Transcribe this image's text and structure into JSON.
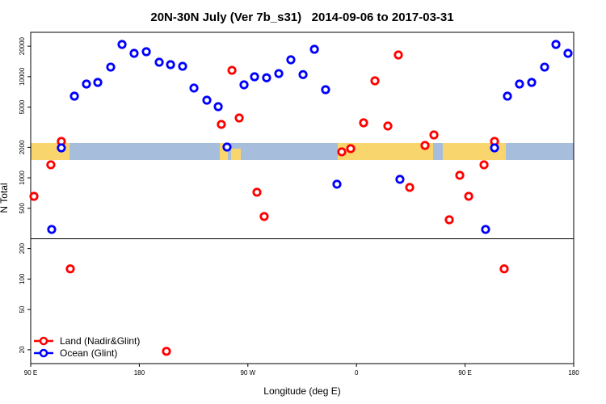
{
  "chart_data": {
    "type": "scatter",
    "log_y": true,
    "title": "20N-30N July (Ver 7b_s31)   2014-09-06 to 2017-03-31",
    "xlabel": "Longitude (deg E)",
    "ylabel": "N Total",
    "xlim": [
      90,
      540
    ],
    "ylim": [
      14.6,
      27400
    ],
    "xticks": [
      {
        "value": 90,
        "label": "90 E"
      },
      180,
      {
        "value": 270,
        "label": "90 W"
      },
      {
        "value": 360,
        "label": "0"
      },
      {
        "value": 450,
        "label": "90 E"
      },
      {
        "value": 540,
        "label": "180"
      }
    ],
    "yticks": [
      20,
      50,
      100,
      200,
      500,
      1000,
      2000,
      5000,
      10000,
      20000
    ],
    "hline": 250,
    "legend": "bottom-left",
    "series": [
      {
        "name": "Land (Nadir&Glint)",
        "color": "#ff0000",
        "x": [
          92.7,
          106.7,
          115.4,
          122.8,
          202.5,
          248,
          256.8,
          262.8,
          277.5,
          283.5,
          347.8,
          355.2,
          365.9,
          375.3,
          386,
          394.7,
          404.1,
          416.8,
          424.2,
          436.9,
          445.6,
          453,
          465.7,
          474.4,
          482.4
        ],
        "values": [
          656,
          1345,
          2291,
          126,
          19.3,
          3373,
          11540,
          3902,
          720,
          415,
          1805,
          1942,
          3497,
          9090,
          3250,
          16370,
          804,
          2090,
          2654,
          385,
          1059,
          657,
          1345,
          2291,
          126
        ]
      },
      {
        "name": "Ocean (Glint)",
        "color": "#0000ff",
        "x": [
          107.4,
          115.4,
          126.2,
          136.2,
          145.6,
          156.3,
          165.7,
          175.7,
          185.8,
          196.5,
          205.9,
          215.9,
          225.3,
          236,
          245.4,
          252.7,
          266.8,
          275.5,
          285.5,
          295.6,
          305.6,
          315.7,
          325.1,
          334.4,
          343.8,
          396,
          467,
          474.4,
          485.1,
          495.1,
          505.2,
          515.9,
          525.3,
          535.3
        ],
        "values": [
          309,
          1978,
          6412,
          8450,
          8765,
          12420,
          20790,
          16980,
          17620,
          13870,
          13130,
          12650,
          7710,
          5850,
          5050,
          2014,
          8300,
          9970,
          9740,
          10720,
          14660,
          10470,
          18620,
          7430,
          865,
          966,
          309,
          1978,
          6412,
          8450,
          8765,
          12420,
          20790,
          16980
        ]
      }
    ]
  }
}
